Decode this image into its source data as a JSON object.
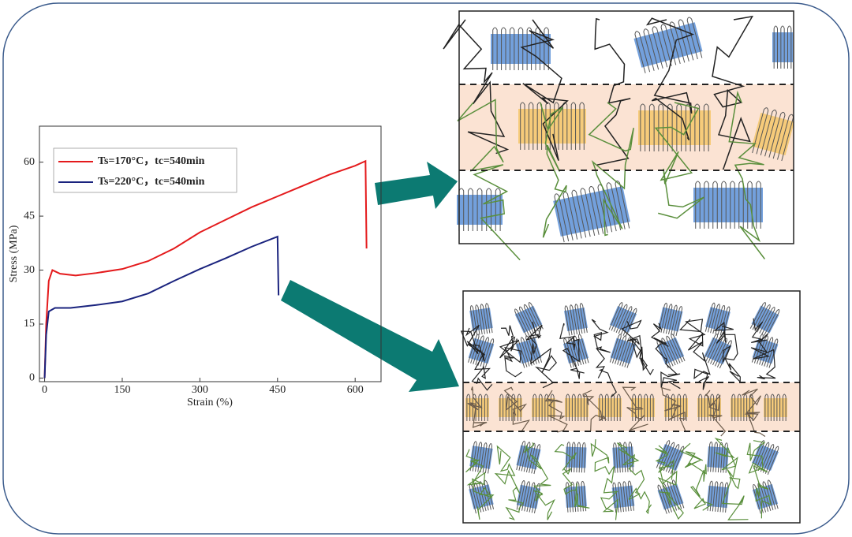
{
  "chart_data": {
    "type": "line",
    "x_label": "Strain (%)",
    "y_label": "Stress (MPa)",
    "xlim": [
      -10,
      650
    ],
    "xticks": [
      0,
      150,
      300,
      450,
      600
    ],
    "ylim": [
      -1,
      70
    ],
    "yticks": [
      0,
      15,
      30,
      45,
      60
    ],
    "legend": "upper left",
    "series": [
      {
        "name": "Ts=170°C，tc=540min",
        "color": "#e41a1c",
        "x": [
          0,
          3,
          8,
          15,
          30,
          60,
          100,
          150,
          200,
          250,
          300,
          350,
          400,
          450,
          500,
          550,
          600,
          620,
          622
        ],
        "values": [
          0,
          15,
          27,
          30,
          29,
          28.5,
          29.2,
          30.3,
          32.5,
          36,
          40.5,
          44,
          47.5,
          50.5,
          53.5,
          56.5,
          59,
          60.3,
          36
        ]
      },
      {
        "name": "Ts=220°C，tc=540min",
        "color": "#1a237e",
        "x": [
          0,
          3,
          8,
          20,
          50,
          100,
          150,
          200,
          250,
          300,
          350,
          400,
          450,
          452
        ],
        "values": [
          0,
          12,
          18.5,
          19.5,
          19.5,
          20.3,
          21.3,
          23.5,
          27,
          30.3,
          33.3,
          36.5,
          39.3,
          23
        ]
      }
    ]
  }
}
